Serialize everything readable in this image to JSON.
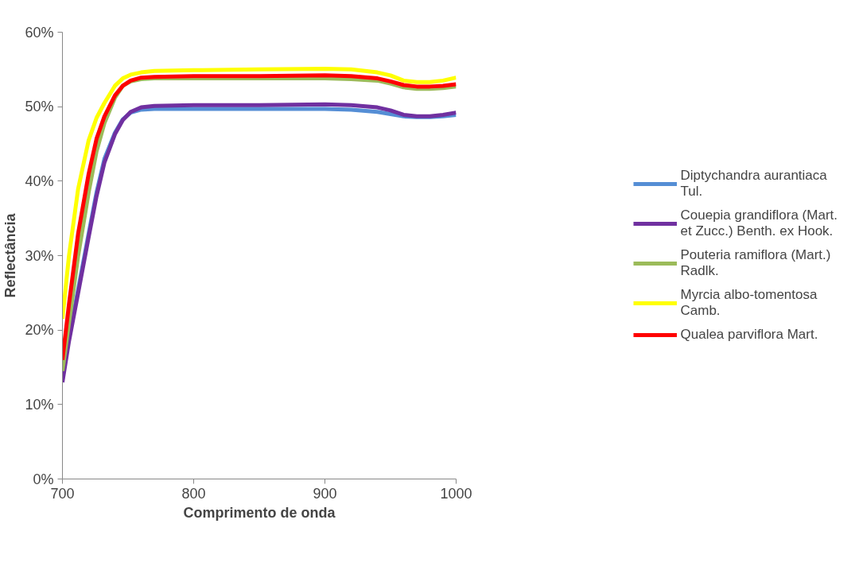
{
  "chart_data": {
    "type": "line",
    "xlabel": "Comprimento de onda",
    "ylabel": "Reflectância",
    "xlim": [
      700,
      1000
    ],
    "xticks": [
      700,
      800,
      900,
      1000
    ],
    "ylim": [
      0,
      60
    ],
    "yticks": [
      {
        "value": 0,
        "label": "0%"
      },
      {
        "value": 10,
        "label": "10%"
      },
      {
        "value": 20,
        "label": "20%"
      },
      {
        "value": 30,
        "label": "30%"
      },
      {
        "value": 40,
        "label": "40%"
      },
      {
        "value": 50,
        "label": "50%"
      },
      {
        "value": 60,
        "label": "60%"
      }
    ],
    "x": [
      700,
      705,
      712,
      720,
      726,
      732,
      740,
      746,
      752,
      760,
      770,
      800,
      850,
      900,
      920,
      940,
      950,
      960,
      970,
      980,
      990,
      1000
    ],
    "grid": false,
    "legend": "right",
    "marker": "none",
    "line_style": "solid",
    "series": [
      {
        "name": "Diptychandra aurantiaca Tul.",
        "color": "#558ed5",
        "values": [
          13.5,
          19,
          25.5,
          33,
          38.5,
          43,
          46.5,
          48.3,
          49.2,
          49.6,
          49.7,
          49.7,
          49.7,
          49.7,
          49.6,
          49.3,
          49,
          48.7,
          48.6,
          48.6,
          48.7,
          48.9
        ]
      },
      {
        "name": "Couepia grandiflora (Mart. et Zucc.) Benth. ex Hook.",
        "color": "#7030a0",
        "values": [
          13,
          18.5,
          25,
          32.5,
          38,
          42.5,
          46.3,
          48.2,
          49.3,
          49.9,
          50.1,
          50.2,
          50.2,
          50.3,
          50.2,
          49.9,
          49.5,
          48.9,
          48.7,
          48.7,
          48.9,
          49.2
        ]
      },
      {
        "name": "Pouteria ramiflora (Mart.) Radlk.",
        "color": "#9bbb59",
        "values": [
          14.5,
          21,
          30,
          38.5,
          44,
          47.8,
          51.2,
          52.8,
          53.4,
          53.7,
          53.8,
          53.8,
          53.8,
          53.8,
          53.7,
          53.5,
          53.1,
          52.6,
          52.4,
          52.4,
          52.5,
          52.7
        ]
      },
      {
        "name": "Myrcia albo-tomentosa Camb.",
        "color": "#ffff00",
        "values": [
          21.5,
          30,
          39,
          45.5,
          48.5,
          50.5,
          52.8,
          53.8,
          54.3,
          54.6,
          54.8,
          54.9,
          55,
          55.1,
          55,
          54.6,
          54.2,
          53.5,
          53.3,
          53.3,
          53.5,
          53.9
        ]
      },
      {
        "name": "Qualea parviflora Mart.",
        "color": "#ff0000",
        "values": [
          16,
          23.5,
          33,
          41,
          45.7,
          48.7,
          51.5,
          52.8,
          53.5,
          53.9,
          54,
          54.1,
          54.1,
          54.2,
          54.1,
          53.8,
          53.4,
          52.9,
          52.7,
          52.7,
          52.8,
          53
        ]
      }
    ]
  }
}
